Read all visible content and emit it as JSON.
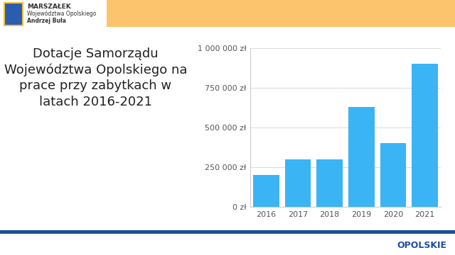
{
  "chart_data": {
    "type": "bar",
    "title": "Dotacje Samorządu Województwa Opolskiego na prace przy zabytkach w latach 2016-2021",
    "categories": [
      "2016",
      "2017",
      "2018",
      "2019",
      "2020",
      "2021"
    ],
    "values": [
      200000,
      300000,
      300000,
      630000,
      400000,
      900000
    ],
    "color": "#3bb4f5",
    "ylim": [
      0,
      1000000
    ],
    "yticks": [
      {
        "value": 0,
        "label": "0 zł"
      },
      {
        "value": 250000,
        "label": "250 000 zł"
      },
      {
        "value": 500000,
        "label": "500 000 zł"
      },
      {
        "value": 750000,
        "label": "750 000 zł"
      },
      {
        "value": 1000000,
        "label": "1 000 000 zł"
      }
    ],
    "grid": true
  },
  "header": {
    "lines": [
      "MARSZAŁEK",
      "Województwa Opolskiego",
      "Andrzej Buła"
    ]
  },
  "footer": {
    "logo_text": "OPOLSKIE"
  }
}
